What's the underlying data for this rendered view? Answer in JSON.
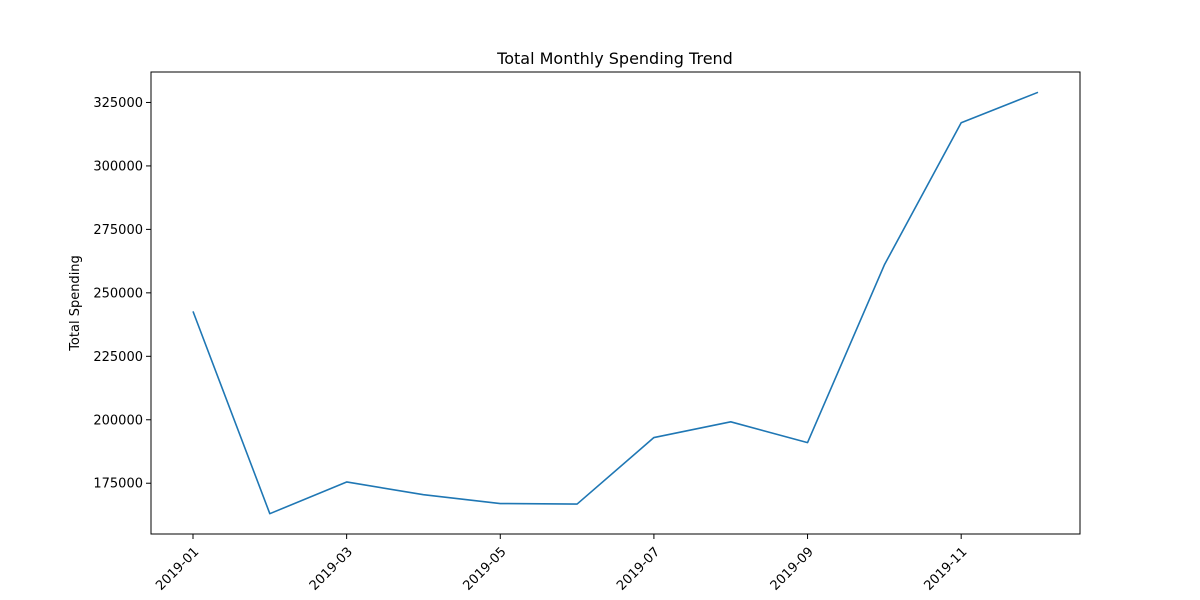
{
  "chart_data": {
    "type": "line",
    "title": "Total Monthly Spending Trend",
    "xlabel": "",
    "ylabel": "Total Spending",
    "x": [
      "2019-01",
      "2019-02",
      "2019-03",
      "2019-04",
      "2019-05",
      "2019-06",
      "2019-07",
      "2019-08",
      "2019-09",
      "2019-10",
      "2019-11",
      "2019-12"
    ],
    "x_tick_labels": [
      "2019-01",
      "2019-03",
      "2019-05",
      "2019-07",
      "2019-09",
      "2019-11"
    ],
    "series": [
      {
        "values": [
          242700,
          163000,
          175500,
          170500,
          167000,
          166800,
          193000,
          199200,
          191000,
          261000,
          317000,
          329000
        ],
        "color": "#1f77b4"
      }
    ],
    "y_ticks": [
      175000,
      200000,
      225000,
      250000,
      275000,
      300000,
      325000
    ],
    "ylim": [
      155000,
      337000
    ],
    "grid": false,
    "legend": "none"
  }
}
